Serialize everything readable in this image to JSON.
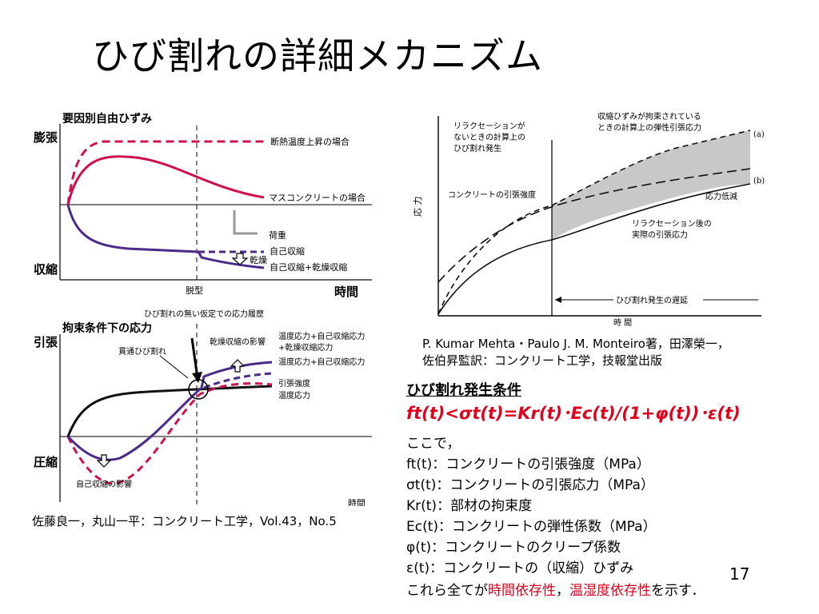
{
  "title": "ひび割れの詳細メカニズム",
  "fig1": {
    "heading": "要因別自由ひずみ",
    "y_top": "膨張",
    "y_bottom": "収縮",
    "x_label": "時間",
    "x_mark": "脱型",
    "curve_adiabatic": "断熱温度上昇の場合",
    "curve_mass": "マスコンクリートの場合",
    "self_shrink": "自己収縮",
    "self_dry_shrink": "自己収縮+乾燥収縮",
    "load": "荷重",
    "drying": "乾燥"
  },
  "fig2": {
    "top_note": "ひび割れの無い仮定での応力履歴",
    "heading": "拘束条件下の応力",
    "y_top": "引張",
    "y_bottom": "圧縮",
    "x_label": "時間",
    "through_crack": "貫通ひび割れ",
    "drying_effect": "乾燥収縮の影響",
    "legend1_line1": "温度応力+自己収縮応力",
    "legend1_line2": "+乾燥収縮応力",
    "legend2": "温度応力+自己収縮応力",
    "legend3": "引張強度",
    "legend4": "温度応力",
    "self_effect": "自己収縮の影響"
  },
  "fig3": {
    "note_left_1": "リラクセーションが",
    "note_left_2": "ないときの計算上の",
    "note_left_3": "ひび割れ発生",
    "note_right_1": "収縮ひずみが拘束されている",
    "note_right_2": "ときの計算上の弾性引張応力",
    "label_a": "(a)",
    "label_b": "(b)",
    "tensile_strength": "コンクリートの引張強度",
    "stress_drop": "応力低減",
    "after_relax_1": "リラクセーション後の",
    "after_relax_2": "実際の引張応力",
    "y_label": "応 力",
    "delay": "ひび割れ発生の遅延",
    "x_label": "時 間"
  },
  "citation_right_line1": "P. Kumar Mehta・Paulo J. M. Monteiro著，田澤榮一，",
  "citation_right_line2": "佐伯昇監訳：コンクリート工学，技報堂出版",
  "citation_left": "佐藤良一，丸山一平：コンクリート工学，Vol.43，No.5",
  "condition_heading": "ひび割れ発生条件",
  "formula": "ft(t)<σt(t)=Kr(t)･Ec(t)/(1+φ(t))･ε(t)",
  "intro": "ここで，",
  "definitions": [
    "ft(t)：コンクリートの引張強度（MPa）",
    "σt(t)：コンクリートの引張応力（MPa）",
    "Kr(t)：部材の拘束度",
    "Ec(t)：コンクリートの弾性係数（MPa）",
    "φ(t)：コンクリートのクリープ係数",
    "ε(t)：コンクリートの（収縮）ひずみ"
  ],
  "closing_part1": "これら全てが",
  "closing_red1": "時間依存性",
  "closing_part2": "，",
  "closing_red2": "温湿度依存性",
  "closing_part3": "を示す．",
  "page_number": "17",
  "colors": {
    "crimson": "#d0104c",
    "purple": "#4b2a8a",
    "red_text": "#e0001b"
  }
}
